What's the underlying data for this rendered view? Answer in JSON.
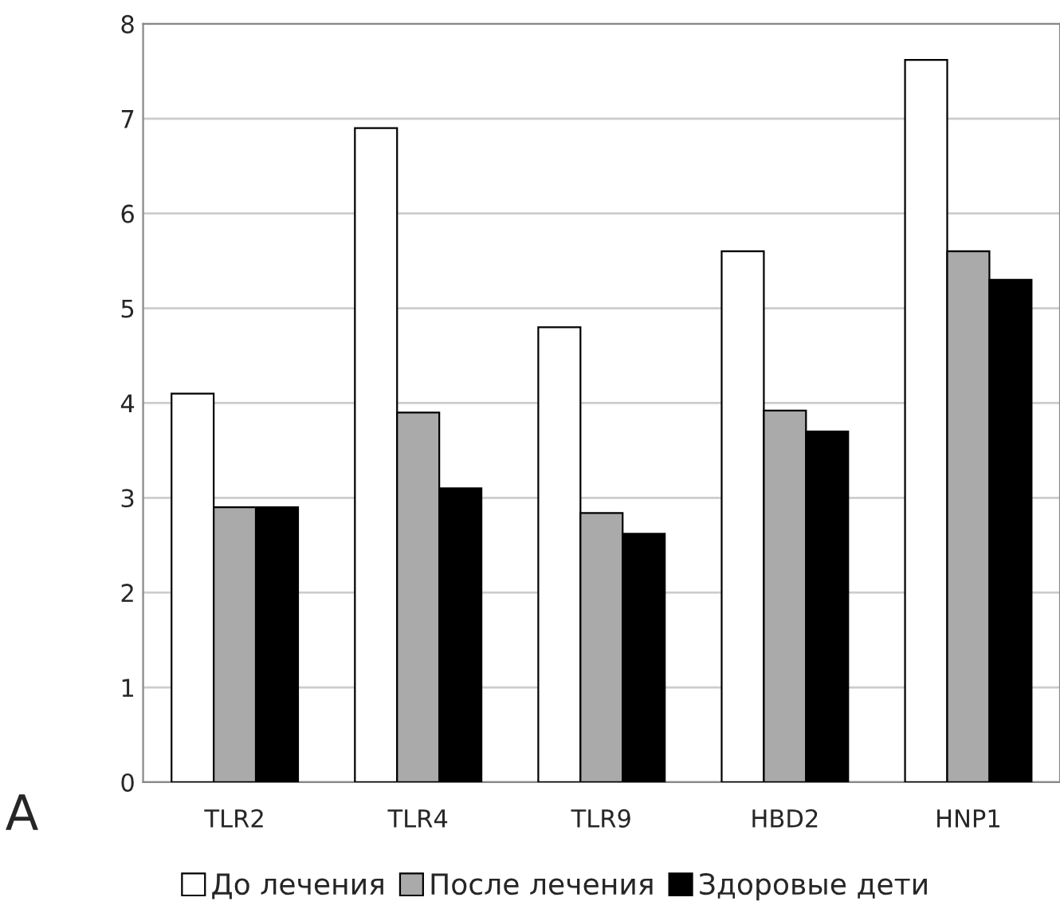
{
  "chart_data": {
    "type": "bar",
    "categories": [
      "TLR2",
      "TLR4",
      "TLR9",
      "HBD2",
      "HNP1"
    ],
    "series": [
      {
        "name": "До лечения",
        "color": "#ffffff",
        "values": [
          4.1,
          6.9,
          4.8,
          5.6,
          7.62
        ]
      },
      {
        "name": "После лечения",
        "color": "#aaaaaa",
        "values": [
          2.9,
          3.9,
          2.84,
          3.92,
          5.6
        ]
      },
      {
        "name": "Здоровые дети",
        "color": "#000000",
        "values": [
          2.9,
          3.1,
          2.62,
          3.7,
          5.3
        ]
      }
    ],
    "ylim": [
      0,
      8
    ],
    "yticks": [
      0,
      1,
      2,
      3,
      4,
      5,
      6,
      7,
      8
    ],
    "grid": "y",
    "legend": "bottom",
    "annotations": [
      "A"
    ]
  }
}
